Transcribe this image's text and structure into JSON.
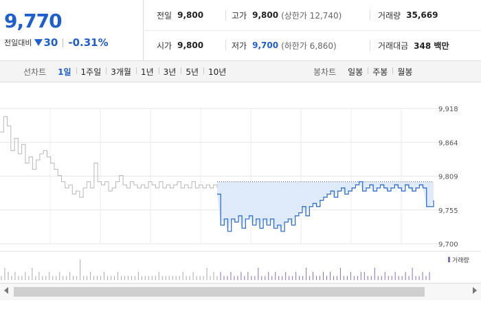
{
  "quote": {
    "price": "9,770",
    "change_label": "전일대비",
    "change": "30",
    "change_pct": "-0.31%",
    "accent_color": "#1e5ecf"
  },
  "info": {
    "prev_close": {
      "label": "전일",
      "value": "9,800"
    },
    "high": {
      "label": "고가",
      "value": "9,800",
      "sub": "(상한가 12,740)"
    },
    "volume": {
      "label": "거래량",
      "value": "35,669"
    },
    "open": {
      "label": "시가",
      "value": "9,800"
    },
    "low": {
      "label": "저가",
      "value": "9,700",
      "sub": "(하한가 6,860)"
    },
    "amount": {
      "label": "거래대금",
      "value": "348 백만"
    }
  },
  "line_chart_tabs": {
    "title": "선차트",
    "items": [
      "1일",
      "1주일",
      "3개월",
      "1년",
      "3년",
      "5년",
      "10년"
    ],
    "active": "1일"
  },
  "candle_chart_tabs": {
    "title": "봉차트",
    "items": [
      "일봉",
      "주봉",
      "월봉"
    ]
  },
  "chart_data": {
    "type": "line",
    "y_ticks": [
      "9,918",
      "9,864",
      "9,809",
      "9,755",
      "9,700"
    ],
    "ylim": [
      9700,
      9918
    ],
    "reference_level": 9800,
    "volume_legend": "거래량",
    "series": [
      {
        "values": [
          9880,
          9905,
          9890,
          9850,
          9870,
          9845,
          9860,
          9830,
          9840,
          9820,
          9835,
          9845,
          9850,
          9840,
          9830,
          9820,
          9810,
          9800,
          9790,
          9795,
          9780,
          9785,
          9775,
          9790,
          9800,
          9790,
          9830,
          9800,
          9795,
          9800,
          9785,
          9790,
          9800,
          9810,
          9795,
          9790,
          9800,
          9795,
          9790,
          9795,
          9790,
          9800,
          9795,
          9790,
          9800,
          9790,
          9795,
          9790,
          9795,
          9800,
          9790,
          9795,
          9790,
          9800,
          9790,
          9795,
          9790,
          9795,
          9790,
          9795,
          9790
        ]
      },
      {
        "values": [
          9780,
          9730,
          9740,
          9720,
          9740,
          9735,
          9745,
          9725,
          9740,
          9745,
          9730,
          9740,
          9725,
          9740,
          9730,
          9740,
          9725,
          9730,
          9720,
          9735,
          9740,
          9730,
          9745,
          9750,
          9760,
          9745,
          9760,
          9765,
          9760,
          9770,
          9775,
          9780,
          9785,
          9775,
          9785,
          9790,
          9780,
          9785,
          9790,
          9795,
          9800,
          9785,
          9790,
          9795,
          9785,
          9790,
          9795,
          9790,
          9785,
          9790,
          9795,
          9790,
          9785,
          9795,
          9790,
          9785,
          9790,
          9795,
          9790,
          9760,
          9760,
          9770
        ]
      }
    ],
    "volume": [
      1,
      3,
      2,
      1,
      2,
      1,
      1,
      2,
      1,
      3,
      1,
      2,
      1,
      1,
      2,
      1,
      1,
      2,
      1,
      1,
      2,
      1,
      1,
      5,
      1,
      1,
      2,
      1,
      1,
      1,
      2,
      1,
      1,
      1,
      2,
      1,
      1,
      1,
      1,
      1,
      2,
      1,
      1,
      1,
      1,
      1,
      2,
      1,
      1,
      1,
      1,
      1,
      1,
      2,
      1,
      1,
      2,
      1,
      1,
      1,
      3,
      1,
      2,
      1,
      2,
      1,
      1,
      2,
      1,
      1,
      2,
      1,
      2,
      1,
      1,
      3,
      1,
      1,
      2,
      1,
      2,
      1,
      1,
      2,
      1,
      1,
      2,
      1,
      1,
      3,
      1,
      2,
      1,
      1,
      2,
      1,
      2,
      1,
      1,
      3,
      1,
      1,
      2,
      1,
      1,
      2,
      2,
      1,
      1,
      3,
      1,
      1,
      2,
      1,
      1,
      2,
      1,
      1,
      2,
      1,
      3,
      1,
      1,
      2,
      1,
      2
    ]
  }
}
